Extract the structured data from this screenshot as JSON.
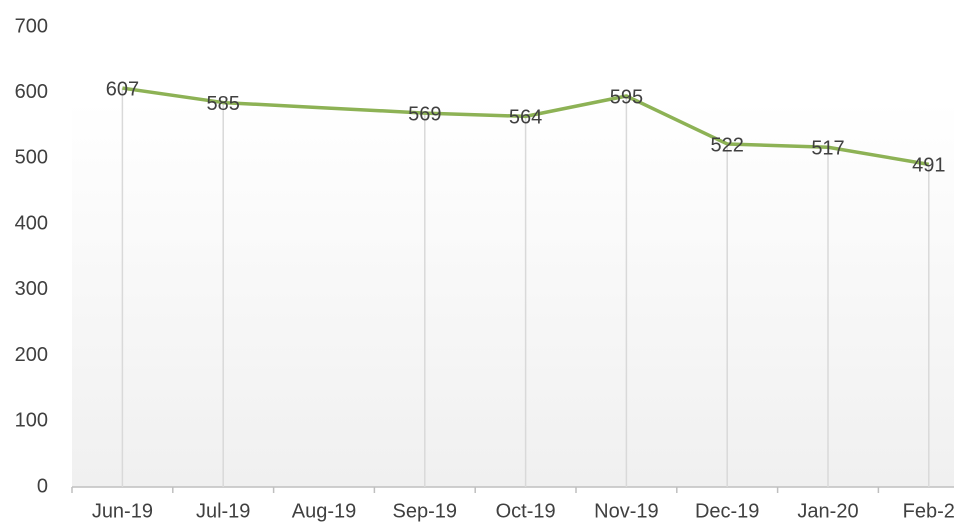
{
  "chart_data": {
    "type": "line",
    "categories": [
      "Jun-19",
      "Jul-19",
      "Aug-19",
      "Sep-19",
      "Oct-19",
      "Nov-19",
      "Dec-19",
      "Jan-20",
      "Feb-2"
    ],
    "series": [
      {
        "name": null,
        "color": "#8db255",
        "values": [
          607,
          585,
          577,
          569,
          564,
          595,
          522,
          517,
          491
        ],
        "value_labels": [
          "607",
          "585",
          null,
          "569",
          "564",
          "595",
          "522",
          "517",
          "491"
        ]
      }
    ],
    "ylim": [
      0,
      700
    ],
    "yticks": [
      0,
      100,
      200,
      300,
      400,
      500,
      600,
      700
    ],
    "grid": false
  }
}
